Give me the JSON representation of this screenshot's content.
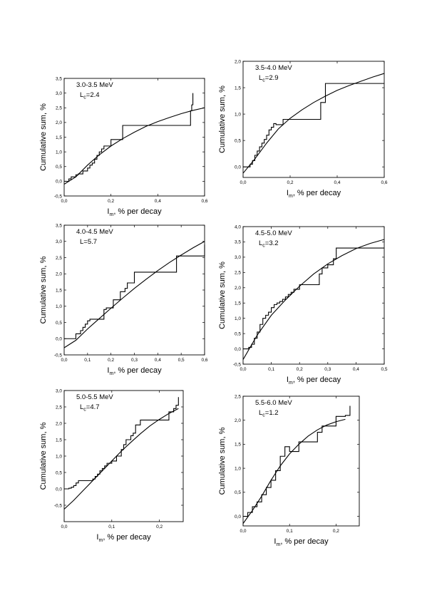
{
  "chart_data": [
    {
      "type": "line",
      "annotation": "3.0-3.5 MeV",
      "lc_prefix": "L",
      "lc_sub": "c",
      "lc_value": "=2.4",
      "xlabel_main": "I",
      "xlabel_sub": "m",
      "xlabel_rest": ", % per decay",
      "ylabel": "Cumulative sum, %",
      "xlim": [
        0,
        0.6
      ],
      "ylim": [
        -0.5,
        3.5
      ],
      "xticks": [
        0,
        0.2,
        0.4,
        0.6
      ],
      "xtick_labels": [
        "0,0",
        "0,2",
        "0,4",
        "0,6"
      ],
      "yticks": [
        -0.5,
        0,
        0.5,
        1,
        1.5,
        2,
        2.5,
        3,
        3.5
      ],
      "ytick_labels": [
        "-0,5",
        "0,0",
        "0,5",
        "1,0",
        "1,5",
        "2,0",
        "2,5",
        "3,0",
        "3,5"
      ],
      "series": [
        {
          "kind": "step",
          "x": [
            0,
            0.02,
            0.03,
            0.05,
            0.06,
            0.08,
            0.1,
            0.11,
            0.12,
            0.13,
            0.14,
            0.15,
            0.16,
            0.17,
            0.2,
            0.25,
            0.54,
            0.545,
            0.55
          ],
          "y": [
            0,
            0.08,
            0.15,
            0.22,
            0.25,
            0.35,
            0.45,
            0.55,
            0.62,
            0.75,
            0.88,
            1.0,
            1.1,
            1.2,
            1.42,
            1.9,
            2.4,
            2.6,
            3.0
          ]
        },
        {
          "kind": "fit",
          "x": [
            0,
            0.05,
            0.1,
            0.15,
            0.2,
            0.25,
            0.3,
            0.35,
            0.4,
            0.45,
            0.5,
            0.55,
            0.6
          ],
          "y": [
            -0.1,
            0.15,
            0.55,
            0.9,
            1.2,
            1.45,
            1.67,
            1.87,
            2.03,
            2.17,
            2.3,
            2.41,
            2.5
          ]
        }
      ]
    },
    {
      "type": "line",
      "annotation": "3.5-4.0 MeV",
      "lc_prefix": "L",
      "lc_sub": "c",
      "lc_value": "=2.9",
      "xlabel_main": "I",
      "xlabel_sub": "m",
      "xlabel_rest": ", % per decay",
      "ylabel": "Cumulative sum, %",
      "xlim": [
        0,
        0.6
      ],
      "ylim": [
        -0.2,
        2.0
      ],
      "xticks": [
        0,
        0.2,
        0.4,
        0.6
      ],
      "xtick_labels": [
        "0,0",
        "0,2",
        "0,4",
        "0,6"
      ],
      "yticks": [
        0,
        0.5,
        1,
        1.5,
        2
      ],
      "ytick_labels": [
        "0,0",
        "0,5",
        "1,0",
        "1,5",
        "2,0"
      ],
      "series": [
        {
          "kind": "step",
          "x": [
            0,
            0.03,
            0.04,
            0.05,
            0.06,
            0.07,
            0.08,
            0.09,
            0.1,
            0.11,
            0.12,
            0.13,
            0.14,
            0.17,
            0.33,
            0.35,
            0.6
          ],
          "y": [
            0,
            0.05,
            0.12,
            0.22,
            0.3,
            0.38,
            0.45,
            0.52,
            0.6,
            0.7,
            0.75,
            0.82,
            0.8,
            0.9,
            1.22,
            1.58,
            1.58
          ]
        },
        {
          "kind": "fit",
          "x": [
            0,
            0.05,
            0.1,
            0.15,
            0.2,
            0.25,
            0.3,
            0.35,
            0.4,
            0.45,
            0.5,
            0.55,
            0.6
          ],
          "y": [
            -0.12,
            0.15,
            0.45,
            0.72,
            0.92,
            1.08,
            1.22,
            1.34,
            1.45,
            1.54,
            1.62,
            1.7,
            1.77
          ]
        }
      ]
    },
    {
      "type": "line",
      "annotation": "4.0-4.5 MeV",
      "lc_prefix": "L",
      "lc_sub": "",
      "lc_value": "=5.7",
      "xlabel_main": "I",
      "xlabel_sub": "m",
      "xlabel_rest": ", % per decay",
      "ylabel": "Cumulative sum, %",
      "xlim": [
        0,
        0.6
      ],
      "ylim": [
        -0.5,
        3.5
      ],
      "xticks": [
        0,
        0.1,
        0.2,
        0.3,
        0.4,
        0.5,
        0.6
      ],
      "xtick_labels": [
        "0,0",
        "0,1",
        "0,2",
        "0,3",
        "0,4",
        "0,5",
        "0,6"
      ],
      "yticks": [
        -0.5,
        0,
        0.5,
        1,
        1.5,
        2,
        2.5,
        3,
        3.5
      ],
      "ytick_labels": [
        "-0,5",
        "0,0",
        "0,5",
        "1,0",
        "1,5",
        "2,0",
        "2,5",
        "3,0",
        "3,5"
      ],
      "series": [
        {
          "kind": "step",
          "x": [
            0,
            0.05,
            0.07,
            0.08,
            0.09,
            0.1,
            0.11,
            0.17,
            0.18,
            0.21,
            0.24,
            0.26,
            0.27,
            0.3,
            0.35,
            0.48,
            0.6
          ],
          "y": [
            0,
            0.15,
            0.25,
            0.35,
            0.45,
            0.55,
            0.6,
            0.9,
            0.95,
            1.2,
            1.45,
            1.55,
            1.72,
            2.05,
            2.05,
            2.55,
            2.9
          ]
        },
        {
          "kind": "fit",
          "x": [
            0,
            0.05,
            0.1,
            0.15,
            0.2,
            0.25,
            0.3,
            0.35,
            0.4,
            0.45,
            0.5,
            0.55,
            0.6
          ],
          "y": [
            -0.28,
            -0.05,
            0.3,
            0.62,
            0.94,
            1.25,
            1.55,
            1.83,
            2.1,
            2.35,
            2.58,
            2.8,
            3.0
          ]
        }
      ]
    },
    {
      "type": "line",
      "annotation": "4.5-5.0 MeV",
      "lc_prefix": "L",
      "lc_sub": "c",
      "lc_value": "=3.2",
      "xlabel_main": "I",
      "xlabel_sub": "m",
      "xlabel_rest": ", % per decay",
      "ylabel": "Cumulative sum, %",
      "xlim": [
        0,
        0.5
      ],
      "ylim": [
        -0.5,
        4.0
      ],
      "xticks": [
        0,
        0.1,
        0.2,
        0.3,
        0.4,
        0.5
      ],
      "xtick_labels": [
        "0,0",
        "0,1",
        "0,2",
        "0,3",
        "0,4",
        "0,5"
      ],
      "yticks": [
        -0.5,
        0,
        0.5,
        1,
        1.5,
        2,
        2.5,
        3,
        3.5,
        4
      ],
      "ytick_labels": [
        "-0,5",
        "0,0",
        "0,5",
        "1,0",
        "1,5",
        "2,0",
        "2,5",
        "3,0",
        "3,5",
        "4,0"
      ],
      "series": [
        {
          "kind": "step",
          "x": [
            0,
            0.02,
            0.03,
            0.04,
            0.05,
            0.06,
            0.07,
            0.08,
            0.09,
            0.1,
            0.11,
            0.12,
            0.13,
            0.14,
            0.15,
            0.16,
            0.17,
            0.18,
            0.2,
            0.25,
            0.27,
            0.28,
            0.3,
            0.32,
            0.33,
            0.5
          ],
          "y": [
            0,
            0.05,
            0.15,
            0.35,
            0.55,
            0.8,
            1.0,
            1.1,
            1.2,
            1.35,
            1.45,
            1.5,
            1.55,
            1.62,
            1.7,
            1.78,
            1.85,
            1.95,
            2.1,
            2.1,
            2.45,
            2.65,
            2.75,
            2.95,
            3.3,
            3.3
          ]
        },
        {
          "kind": "fit",
          "x": [
            0,
            0.05,
            0.1,
            0.15,
            0.2,
            0.25,
            0.3,
            0.35,
            0.4,
            0.45,
            0.5
          ],
          "y": [
            -0.35,
            0.45,
            1.1,
            1.6,
            2.05,
            2.45,
            2.78,
            3.05,
            3.28,
            3.45,
            3.58
          ]
        }
      ]
    },
    {
      "type": "line",
      "annotation": "5.0-5.5 MeV",
      "lc_prefix": "L",
      "lc_sub": "c",
      "lc_value": "=4.7",
      "xlabel_main": "I",
      "xlabel_sub": "m",
      "xlabel_rest": ", % per decay",
      "ylabel": "Cumulative sum, %",
      "xlim": [
        0,
        0.25
      ],
      "ylim": [
        -1.0,
        3.0
      ],
      "xticks": [
        0,
        0.1,
        0.2
      ],
      "xtick_labels": [
        "0,0",
        "0,1",
        "0,2"
      ],
      "yticks": [
        -0.5,
        0,
        0.5,
        1,
        1.5,
        2,
        2.5,
        3
      ],
      "ytick_labels": [
        "-0,5",
        "0,0",
        "0,5",
        "1,0",
        "1,5",
        "2,0",
        "2,5",
        "3,0"
      ],
      "series": [
        {
          "kind": "step",
          "x": [
            0,
            0.01,
            0.015,
            0.02,
            0.025,
            0.03,
            0.06,
            0.065,
            0.07,
            0.075,
            0.08,
            0.085,
            0.09,
            0.1,
            0.11,
            0.12,
            0.125,
            0.13,
            0.14,
            0.145,
            0.15,
            0.16,
            0.22,
            0.23,
            0.235,
            0.24
          ],
          "y": [
            0,
            0.02,
            0.05,
            0.1,
            0.18,
            0.25,
            0.3,
            0.38,
            0.45,
            0.55,
            0.62,
            0.7,
            0.78,
            0.85,
            1.0,
            1.2,
            1.35,
            1.5,
            1.62,
            1.7,
            1.95,
            2.1,
            2.35,
            2.45,
            2.55,
            2.8
          ]
        },
        {
          "kind": "fit",
          "x": [
            0,
            0.02,
            0.04,
            0.06,
            0.08,
            0.1,
            0.12,
            0.14,
            0.16,
            0.18,
            0.2,
            0.22,
            0.24
          ],
          "y": [
            -0.62,
            -0.35,
            -0.05,
            0.25,
            0.55,
            0.85,
            1.15,
            1.42,
            1.68,
            1.92,
            2.12,
            2.3,
            2.45
          ]
        }
      ]
    },
    {
      "type": "line",
      "annotation": "5.5-6.0 MeV",
      "lc_prefix": "L",
      "lc_sub": "c",
      "lc_value": "=1.2",
      "xlabel_main": "I",
      "xlabel_sub": "m",
      "xlabel_rest": ", % per decay",
      "ylabel": "Cumulative sum, %",
      "xlim": [
        0,
        0.25
      ],
      "ylim": [
        -0.2,
        2.5
      ],
      "xticks": [
        0,
        0.1,
        0.2
      ],
      "xtick_labels": [
        "0,0",
        "0,1",
        "0,2"
      ],
      "yticks": [
        0,
        0.5,
        1,
        1.5,
        2,
        2.5
      ],
      "ytick_labels": [
        "0,0",
        "0,5",
        "1,0",
        "1,5",
        "2,0",
        "2,5"
      ],
      "series": [
        {
          "kind": "step",
          "x": [
            0,
            0.01,
            0.02,
            0.03,
            0.04,
            0.05,
            0.06,
            0.07,
            0.08,
            0.09,
            0.1,
            0.12,
            0.16,
            0.17,
            0.2,
            0.22,
            0.23
          ],
          "y": [
            0,
            0.08,
            0.2,
            0.3,
            0.45,
            0.6,
            0.75,
            0.95,
            1.25,
            1.45,
            1.35,
            1.55,
            1.75,
            1.88,
            2.08,
            2.1,
            2.3
          ]
        },
        {
          "kind": "fit",
          "x": [
            0,
            0.02,
            0.04,
            0.06,
            0.08,
            0.1,
            0.12,
            0.14,
            0.16,
            0.18,
            0.2,
            0.22
          ],
          "y": [
            -0.15,
            0.12,
            0.42,
            0.75,
            1.05,
            1.3,
            1.5,
            1.67,
            1.8,
            1.9,
            1.97,
            2.02
          ]
        }
      ]
    }
  ]
}
